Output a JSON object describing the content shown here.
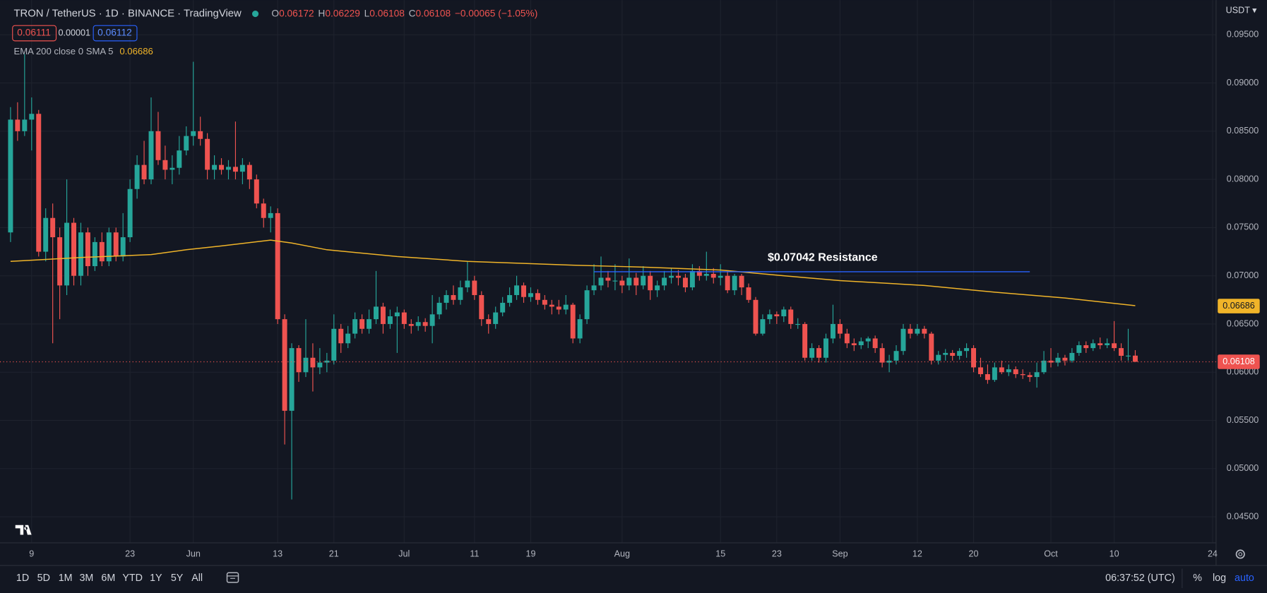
{
  "chart_data": {
    "type": "candlestick",
    "title": "TRON / TetherUS · 1D · BINANCE · TradingView",
    "header": {
      "o_label": "O",
      "open": 0.06172,
      "h_label": "H",
      "high": 0.06229,
      "l_label": "L",
      "low": 0.06108,
      "c_label": "C",
      "close": 0.06108,
      "change": "−0.00065 (−1.05%)"
    },
    "order_boxes": [
      0.06111,
      1e-05,
      0.06112
    ],
    "indicator": {
      "name": "EMA 200 close 0 SMA 5",
      "value": 0.06686,
      "color": "#f0b429",
      "x": [
        0,
        10,
        20,
        25,
        30,
        37,
        40,
        45,
        55,
        65,
        80,
        90,
        101,
        110,
        118,
        130,
        140,
        150,
        160
      ],
      "values": [
        0.0715,
        0.0719,
        0.0722,
        0.0727,
        0.0731,
        0.0737,
        0.0734,
        0.0727,
        0.072,
        0.0715,
        0.0711,
        0.0709,
        0.0706,
        0.07,
        0.0695,
        0.069,
        0.0683,
        0.0677,
        0.0669
      ]
    },
    "up_color": "#26a69a",
    "down_color": "#ef5350",
    "candles": [
      [
        0.0745,
        0.0875,
        0.0735,
        0.0862
      ],
      [
        0.0862,
        0.088,
        0.084,
        0.085
      ],
      [
        0.085,
        0.093,
        0.0845,
        0.0862
      ],
      [
        0.0862,
        0.0885,
        0.083,
        0.0868
      ],
      [
        0.0868,
        0.0872,
        0.072,
        0.0725
      ],
      [
        0.0725,
        0.077,
        0.0715,
        0.076
      ],
      [
        0.076,
        0.0775,
        0.063,
        0.074
      ],
      [
        0.074,
        0.075,
        0.0655,
        0.069
      ],
      [
        0.069,
        0.08,
        0.068,
        0.0755
      ],
      [
        0.0755,
        0.076,
        0.069,
        0.07
      ],
      [
        0.07,
        0.0755,
        0.069,
        0.0745
      ],
      [
        0.0745,
        0.075,
        0.07,
        0.071
      ],
      [
        0.071,
        0.074,
        0.0705,
        0.0735
      ],
      [
        0.0735,
        0.0745,
        0.071,
        0.0715
      ],
      [
        0.0715,
        0.075,
        0.071,
        0.0745
      ],
      [
        0.0745,
        0.075,
        0.0715,
        0.072
      ],
      [
        0.072,
        0.0765,
        0.0715,
        0.074
      ],
      [
        0.074,
        0.08,
        0.0735,
        0.079
      ],
      [
        0.079,
        0.0825,
        0.078,
        0.0815
      ],
      [
        0.0815,
        0.084,
        0.0795,
        0.08
      ],
      [
        0.08,
        0.0885,
        0.0795,
        0.085
      ],
      [
        0.085,
        0.087,
        0.0815,
        0.082
      ],
      [
        0.082,
        0.0835,
        0.08,
        0.081
      ],
      [
        0.081,
        0.0825,
        0.0795,
        0.0812
      ],
      [
        0.0812,
        0.0845,
        0.0805,
        0.083
      ],
      [
        0.083,
        0.0855,
        0.0825,
        0.0845
      ],
      [
        0.0845,
        0.0922,
        0.0835,
        0.085
      ],
      [
        0.085,
        0.0865,
        0.0835,
        0.0842
      ],
      [
        0.0842,
        0.0848,
        0.08,
        0.081
      ],
      [
        0.081,
        0.0825,
        0.08,
        0.0815
      ],
      [
        0.0815,
        0.0822,
        0.0805,
        0.081
      ],
      [
        0.081,
        0.082,
        0.08,
        0.0813
      ],
      [
        0.0813,
        0.086,
        0.08,
        0.0808
      ],
      [
        0.0808,
        0.0822,
        0.0795,
        0.0815
      ],
      [
        0.0815,
        0.0818,
        0.079,
        0.08
      ],
      [
        0.08,
        0.0805,
        0.077,
        0.0775
      ],
      [
        0.0775,
        0.078,
        0.075,
        0.076
      ],
      [
        0.076,
        0.0772,
        0.0745,
        0.0765
      ],
      [
        0.0765,
        0.077,
        0.065,
        0.0655
      ],
      [
        0.0655,
        0.066,
        0.0525,
        0.056
      ],
      [
        0.056,
        0.063,
        0.0468,
        0.0625
      ],
      [
        0.0625,
        0.0628,
        0.059,
        0.06
      ],
      [
        0.06,
        0.0655,
        0.0595,
        0.0615
      ],
      [
        0.0615,
        0.063,
        0.058,
        0.0605
      ],
      [
        0.0605,
        0.0625,
        0.0598,
        0.061
      ],
      [
        0.061,
        0.062,
        0.06,
        0.0612
      ],
      [
        0.0612,
        0.066,
        0.0608,
        0.0645
      ],
      [
        0.0645,
        0.065,
        0.062,
        0.063
      ],
      [
        0.063,
        0.0648,
        0.0625,
        0.064
      ],
      [
        0.064,
        0.0662,
        0.0635,
        0.0655
      ],
      [
        0.0655,
        0.066,
        0.064,
        0.0645
      ],
      [
        0.0645,
        0.0665,
        0.064,
        0.0655
      ],
      [
        0.0655,
        0.0705,
        0.065,
        0.0668
      ],
      [
        0.0668,
        0.0672,
        0.064,
        0.065
      ],
      [
        0.065,
        0.0665,
        0.0645,
        0.0658
      ],
      [
        0.0658,
        0.0668,
        0.062,
        0.0662
      ],
      [
        0.0662,
        0.0665,
        0.0645,
        0.065
      ],
      [
        0.065,
        0.0655,
        0.064,
        0.0648
      ],
      [
        0.0648,
        0.0658,
        0.0643,
        0.0652
      ],
      [
        0.0652,
        0.0656,
        0.0642,
        0.0648
      ],
      [
        0.0648,
        0.068,
        0.063,
        0.066
      ],
      [
        0.066,
        0.0678,
        0.0655,
        0.0672
      ],
      [
        0.0672,
        0.0685,
        0.0665,
        0.068
      ],
      [
        0.068,
        0.069,
        0.067,
        0.0675
      ],
      [
        0.0675,
        0.0695,
        0.067,
        0.0688
      ],
      [
        0.0688,
        0.0715,
        0.0683,
        0.0695
      ],
      [
        0.0695,
        0.07,
        0.0675,
        0.068
      ],
      [
        0.068,
        0.0684,
        0.0648,
        0.0655
      ],
      [
        0.0655,
        0.066,
        0.064,
        0.065
      ],
      [
        0.065,
        0.0668,
        0.0645,
        0.0662
      ],
      [
        0.0662,
        0.0678,
        0.0658,
        0.0672
      ],
      [
        0.0672,
        0.0688,
        0.0668,
        0.068
      ],
      [
        0.068,
        0.07,
        0.0675,
        0.069
      ],
      [
        0.069,
        0.0693,
        0.0672,
        0.0678
      ],
      [
        0.0678,
        0.0688,
        0.0673,
        0.0682
      ],
      [
        0.0682,
        0.0686,
        0.067,
        0.0675
      ],
      [
        0.0675,
        0.068,
        0.0665,
        0.067
      ],
      [
        0.067,
        0.0675,
        0.066,
        0.0668
      ],
      [
        0.0668,
        0.0675,
        0.066,
        0.0665
      ],
      [
        0.0665,
        0.068,
        0.066,
        0.067
      ],
      [
        0.067,
        0.0672,
        0.063,
        0.0635
      ],
      [
        0.0635,
        0.066,
        0.063,
        0.0655
      ],
      [
        0.0655,
        0.069,
        0.065,
        0.0685
      ],
      [
        0.0685,
        0.0712,
        0.068,
        0.069
      ],
      [
        0.069,
        0.072,
        0.0685,
        0.0698
      ],
      [
        0.0698,
        0.0705,
        0.0688,
        0.0695
      ],
      [
        0.0695,
        0.0712,
        0.0685,
        0.0695
      ],
      [
        0.0695,
        0.07,
        0.0682,
        0.069
      ],
      [
        0.069,
        0.0718,
        0.0685,
        0.0698
      ],
      [
        0.0698,
        0.0703,
        0.068,
        0.069
      ],
      [
        0.069,
        0.071,
        0.0686,
        0.07
      ],
      [
        0.07,
        0.0705,
        0.0675,
        0.0685
      ],
      [
        0.0685,
        0.0695,
        0.0678,
        0.069
      ],
      [
        0.069,
        0.0705,
        0.0685,
        0.0698
      ],
      [
        0.0698,
        0.0708,
        0.0692,
        0.07
      ],
      [
        0.07,
        0.0706,
        0.069,
        0.0698
      ],
      [
        0.0698,
        0.0702,
        0.0683,
        0.0688
      ],
      [
        0.0688,
        0.0712,
        0.0685,
        0.0705
      ],
      [
        0.0705,
        0.071,
        0.0695,
        0.07
      ],
      [
        0.07,
        0.0725,
        0.0695,
        0.0702
      ],
      [
        0.0702,
        0.0708,
        0.0692,
        0.0698
      ],
      [
        0.0698,
        0.0712,
        0.069,
        0.07
      ],
      [
        0.07,
        0.0705,
        0.0682,
        0.0685
      ],
      [
        0.0685,
        0.0702,
        0.068,
        0.07
      ],
      [
        0.07,
        0.0702,
        0.068,
        0.0688
      ],
      [
        0.0688,
        0.0692,
        0.0672,
        0.0675
      ],
      [
        0.0675,
        0.0678,
        0.0638,
        0.064
      ],
      [
        0.064,
        0.066,
        0.0638,
        0.0655
      ],
      [
        0.0655,
        0.0665,
        0.065,
        0.066
      ],
      [
        0.066,
        0.0663,
        0.065,
        0.0658
      ],
      [
        0.0658,
        0.0668,
        0.0652,
        0.0665
      ],
      [
        0.0665,
        0.0668,
        0.0645,
        0.065
      ],
      [
        0.065,
        0.0656,
        0.0645,
        0.065
      ],
      [
        0.065,
        0.0652,
        0.0612,
        0.0615
      ],
      [
        0.0615,
        0.063,
        0.0612,
        0.0625
      ],
      [
        0.0625,
        0.0628,
        0.061,
        0.0615
      ],
      [
        0.0615,
        0.064,
        0.061,
        0.0635
      ],
      [
        0.0635,
        0.067,
        0.063,
        0.065
      ],
      [
        0.065,
        0.0655,
        0.0635,
        0.064
      ],
      [
        0.064,
        0.0645,
        0.0625,
        0.063
      ],
      [
        0.063,
        0.0635,
        0.0622,
        0.0628
      ],
      [
        0.0628,
        0.0636,
        0.0624,
        0.0632
      ],
      [
        0.0632,
        0.0637,
        0.0625,
        0.0635
      ],
      [
        0.0635,
        0.0638,
        0.062,
        0.0625
      ],
      [
        0.0625,
        0.063,
        0.0605,
        0.061
      ],
      [
        0.061,
        0.0618,
        0.06,
        0.0612
      ],
      [
        0.0612,
        0.0628,
        0.0608,
        0.0622
      ],
      [
        0.0622,
        0.065,
        0.0618,
        0.0645
      ],
      [
        0.0645,
        0.065,
        0.0635,
        0.064
      ],
      [
        0.064,
        0.065,
        0.0638,
        0.0645
      ],
      [
        0.0645,
        0.0648,
        0.0635,
        0.064
      ],
      [
        0.064,
        0.0642,
        0.0608,
        0.0612
      ],
      [
        0.0612,
        0.0622,
        0.0608,
        0.0618
      ],
      [
        0.0618,
        0.0624,
        0.0612,
        0.062
      ],
      [
        0.062,
        0.0623,
        0.0612,
        0.0617
      ],
      [
        0.0617,
        0.0625,
        0.0613,
        0.0622
      ],
      [
        0.0622,
        0.063,
        0.0615,
        0.0625
      ],
      [
        0.0625,
        0.0628,
        0.06,
        0.0605
      ],
      [
        0.0605,
        0.0615,
        0.0595,
        0.0598
      ],
      [
        0.0598,
        0.0608,
        0.0588,
        0.0592
      ],
      [
        0.0592,
        0.061,
        0.059,
        0.0605
      ],
      [
        0.0605,
        0.0612,
        0.0598,
        0.06
      ],
      [
        0.06,
        0.0608,
        0.0596,
        0.0603
      ],
      [
        0.0603,
        0.0606,
        0.0594,
        0.0598
      ],
      [
        0.0598,
        0.0603,
        0.0593,
        0.0597
      ],
      [
        0.0597,
        0.06,
        0.059,
        0.0595
      ],
      [
        0.0595,
        0.061,
        0.0584,
        0.06
      ],
      [
        0.06,
        0.0622,
        0.0598,
        0.0612
      ],
      [
        0.0612,
        0.0625,
        0.0605,
        0.061
      ],
      [
        0.061,
        0.062,
        0.0606,
        0.0615
      ],
      [
        0.0615,
        0.0618,
        0.0607,
        0.0612
      ],
      [
        0.0612,
        0.0625,
        0.061,
        0.062
      ],
      [
        0.062,
        0.0632,
        0.0617,
        0.0628
      ],
      [
        0.0628,
        0.0632,
        0.062,
        0.0625
      ],
      [
        0.0625,
        0.0634,
        0.0622,
        0.063
      ],
      [
        0.063,
        0.0636,
        0.0624,
        0.0628
      ],
      [
        0.0628,
        0.0635,
        0.0625,
        0.063
      ],
      [
        0.063,
        0.0653,
        0.0622,
        0.0625
      ],
      [
        0.0625,
        0.063,
        0.0612,
        0.0617
      ],
      [
        0.0617,
        0.0645,
        0.0612,
        0.06172
      ],
      [
        0.06172,
        0.06229,
        0.06108,
        0.06108
      ]
    ],
    "last_price": 0.06108,
    "annotation": {
      "label": "$0.07042 Resistance",
      "value": 0.07042,
      "x": [
        83,
        145
      ],
      "color": "#2962ff"
    },
    "xlim": [
      -1.5,
      171.5
    ],
    "xticks": [
      {
        "value": 3,
        "label": "9"
      },
      {
        "value": 17,
        "label": "23"
      },
      {
        "value": 26,
        "label": "Jun"
      },
      {
        "value": 38,
        "label": "13"
      },
      {
        "value": 46,
        "label": "21"
      },
      {
        "value": 56,
        "label": "Jul"
      },
      {
        "value": 66,
        "label": "11"
      },
      {
        "value": 74,
        "label": "19"
      },
      {
        "value": 87,
        "label": "Aug"
      },
      {
        "value": 101,
        "label": "15"
      },
      {
        "value": 109,
        "label": "23"
      },
      {
        "value": 118,
        "label": "Sep"
      },
      {
        "value": 129,
        "label": "12"
      },
      {
        "value": 137,
        "label": "20"
      },
      {
        "value": 148,
        "label": "Oct"
      },
      {
        "value": 157,
        "label": "10"
      },
      {
        "value": 171,
        "label": "24"
      }
    ],
    "ylim": [
      0.0423,
      0.0986
    ],
    "yticks": [
      {
        "value": 0.045,
        "label": "0.04500"
      },
      {
        "value": 0.05,
        "label": "0.05000"
      },
      {
        "value": 0.055,
        "label": "0.05500"
      },
      {
        "value": 0.06,
        "label": "0.06000"
      },
      {
        "value": 0.065,
        "label": "0.06500"
      },
      {
        "value": 0.07,
        "label": "0.07000"
      },
      {
        "value": 0.075,
        "label": "0.07500"
      },
      {
        "value": 0.08,
        "label": "0.08000"
      },
      {
        "value": 0.085,
        "label": "0.08500"
      },
      {
        "value": 0.09,
        "label": "0.09000"
      },
      {
        "value": 0.095,
        "label": "0.09500"
      }
    ],
    "currency": "USDT ▾",
    "grid": true
  },
  "toolbar": {
    "ranges": [
      "1D",
      "5D",
      "1M",
      "3M",
      "6M",
      "YTD",
      "1Y",
      "5Y",
      "All"
    ],
    "time": "06:37:52 (UTC)",
    "options": [
      "%",
      "log",
      "auto"
    ]
  }
}
